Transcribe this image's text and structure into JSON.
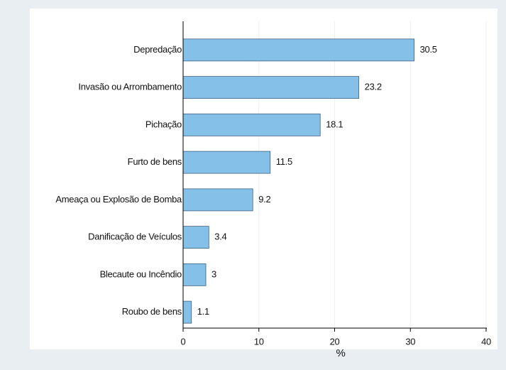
{
  "chart_data": {
    "type": "bar",
    "orientation": "horizontal",
    "categories": [
      "Depredação",
      "Invasão ou Arrombamento",
      "Pichação",
      "Furto de bens",
      "Ameaça ou Explosão de Bomba",
      "Danificação de Veículos",
      "Blecaute ou Incêndio",
      "Roubo de bens"
    ],
    "values": [
      30.5,
      23.2,
      18.1,
      11.5,
      9.2,
      3.4,
      3,
      1.1
    ],
    "color": "#85c0e9",
    "xlabel": "%",
    "xlim": [
      0,
      40
    ],
    "xticks": [
      0,
      10,
      20,
      30,
      40
    ],
    "grid": true
  }
}
